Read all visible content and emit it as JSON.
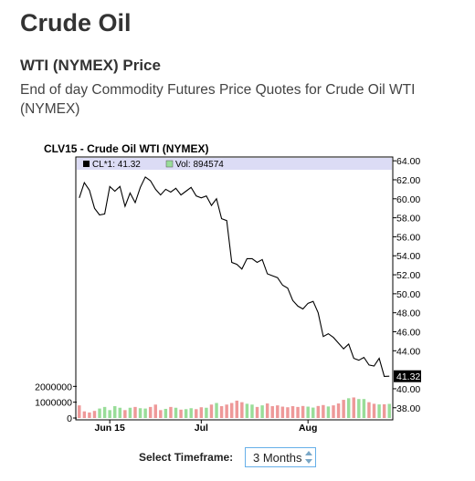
{
  "page": {
    "title": "Crude Oil",
    "subtitle": "WTI (NYMEX) Price",
    "description": "End of day Commodity Futures Price Quotes for Crude Oil WTI (NYMEX)"
  },
  "timeframe": {
    "label": "Select Timeframe:",
    "selected": "3 Months"
  },
  "colors": {
    "price_line": "#000000",
    "legend_bg": "#dcdcf5",
    "vol_up": "#99dd99",
    "vol_down": "#ee9999"
  },
  "chart_data": {
    "type": "line",
    "title": "CLV15 - Crude Oil WTI (NYMEX)",
    "legend": [
      {
        "name": "CL*1: 41.32",
        "color": "#000000"
      },
      {
        "name": "Vol: 894574",
        "color": "#99dd99"
      }
    ],
    "last_price_label": "41.32",
    "last_price": 41.32,
    "price_axis": {
      "ylim": [
        37.4,
        64.4
      ],
      "ticks": [
        "64.00",
        "62.00",
        "60.00",
        "58.00",
        "56.00",
        "54.00",
        "52.00",
        "50.00",
        "48.00",
        "46.00",
        "44.00",
        "40.00",
        "38.00"
      ]
    },
    "volume_axis": {
      "ylim": [
        0,
        3000000
      ],
      "ticks": [
        "2000000",
        "1000000",
        "0"
      ]
    },
    "x_labels": [
      {
        "label": "Jun 15",
        "index": 6
      },
      {
        "label": "Jul",
        "index": 24
      },
      {
        "label": "Aug",
        "index": 45
      }
    ],
    "series": [
      {
        "name": "CL*1",
        "values": [
          60.1,
          61.7,
          60.9,
          59.0,
          58.3,
          58.4,
          61.3,
          60.8,
          61.3,
          59.2,
          60.6,
          59.6,
          61.2,
          62.3,
          61.9,
          61.0,
          60.4,
          61.0,
          60.7,
          61.1,
          60.4,
          60.8,
          61.2,
          60.3,
          60.1,
          60.3,
          59.3,
          60.0,
          57.9,
          57.7,
          53.3,
          53.1,
          52.6,
          53.7,
          53.7,
          53.3,
          53.6,
          52.1,
          51.9,
          51.7,
          50.9,
          50.6,
          49.3,
          48.7,
          48.4,
          49.0,
          49.2,
          48.0,
          45.5,
          45.8,
          45.4,
          44.8,
          44.2,
          44.7,
          43.2,
          43.0,
          43.3,
          42.5,
          42.4,
          43.2,
          41.3,
          41.32
        ]
      },
      {
        "name": "Vol",
        "values": [
          800000,
          420000,
          350000,
          450000,
          600000,
          700000,
          500000,
          750000,
          650000,
          500000,
          650000,
          700000,
          620000,
          600000,
          700000,
          850000,
          500000,
          580000,
          700000,
          650000,
          530000,
          560000,
          620000,
          560000,
          680000,
          650000,
          850000,
          950000,
          750000,
          850000,
          950000,
          1100000,
          1000000,
          900000,
          850000,
          700000,
          800000,
          920000,
          750000,
          800000,
          720000,
          680000,
          750000,
          700000,
          760000,
          720000,
          660000,
          760000,
          820000,
          730000,
          800000,
          920000,
          1150000,
          1250000,
          1300000,
          1200000,
          1200000,
          1000000,
          900000,
          860000,
          870000,
          894574
        ],
        "up": [
          false,
          false,
          false,
          false,
          true,
          true,
          true,
          true,
          true,
          false,
          true,
          false,
          true,
          true,
          false,
          false,
          false,
          true,
          false,
          true,
          false,
          true,
          true,
          false,
          false,
          true,
          false,
          true,
          false,
          false,
          false,
          false,
          false,
          true,
          true,
          false,
          true,
          false,
          false,
          false,
          false,
          false,
          false,
          false,
          false,
          true,
          true,
          false,
          false,
          true,
          false,
          false,
          false,
          true,
          false,
          true,
          true,
          false,
          false,
          true,
          false,
          true
        ]
      }
    ]
  }
}
